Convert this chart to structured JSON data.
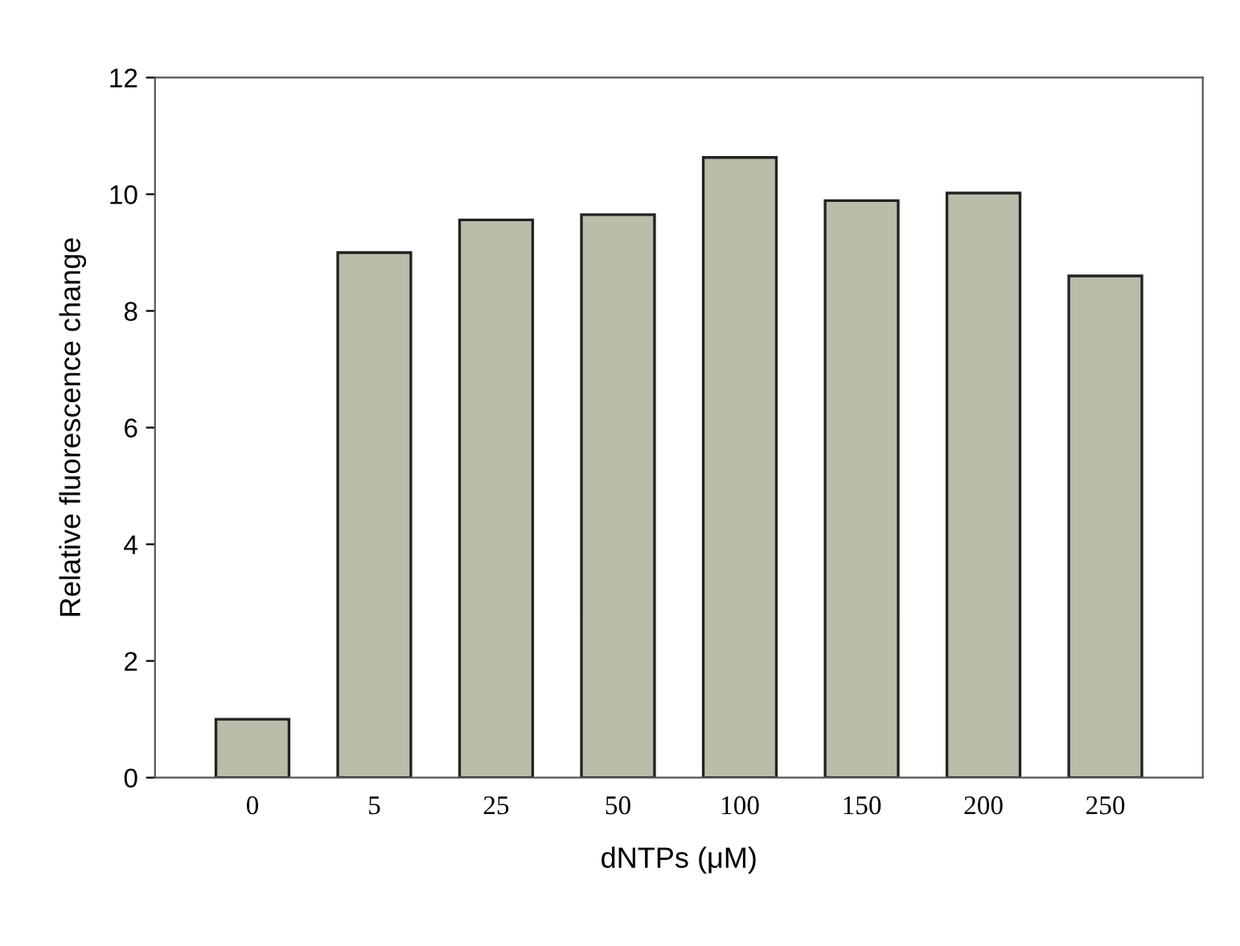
{
  "chart_data": {
    "type": "bar",
    "xlabel": "dNTPs (μM)",
    "ylabel": "Relative fluorescence change",
    "categories": [
      "0",
      "5",
      "25",
      "50",
      "100",
      "150",
      "200",
      "250"
    ],
    "values": [
      1.0,
      9.0,
      9.56,
      9.65,
      10.63,
      9.89,
      10.02,
      8.6
    ],
    "color": "#bbbcaa",
    "ylim": [
      0,
      12
    ],
    "yticks": [
      0,
      2,
      4,
      6,
      8,
      10,
      12
    ],
    "grid": false
  }
}
